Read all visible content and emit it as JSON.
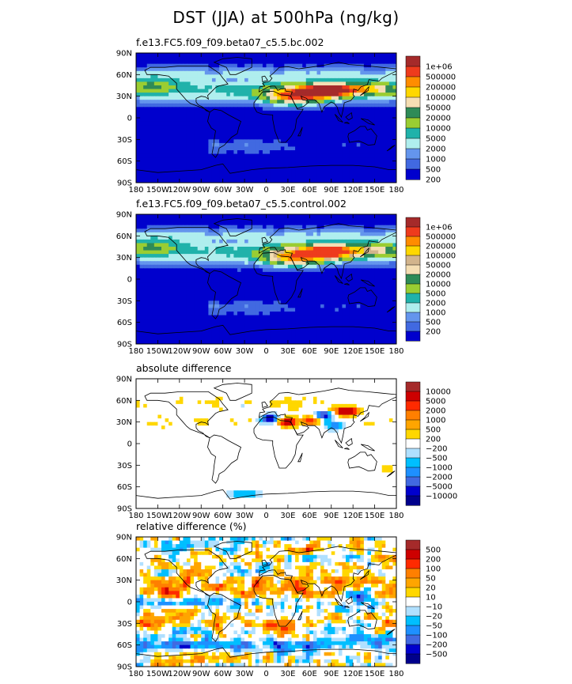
{
  "title": "DST (JJA) at 500hPa (ng/kg)",
  "panels": [
    {
      "title": "f.e13.FC5.f09_f09.beta07_c5.5.bc.002"
    },
    {
      "title": "f.e13.FC5.f09_f09.beta07_c5.5.control.002"
    },
    {
      "title": "absolute difference"
    },
    {
      "title": "relative difference (%)"
    }
  ],
  "chart_data": [
    {
      "type": "heatmap",
      "title": "f.e13.FC5.f09_f09.beta07_c5.5.bc.002",
      "x_ticks": [
        "180",
        "150W",
        "120W",
        "90W",
        "60W",
        "30W",
        "0",
        "30E",
        "60E",
        "90E",
        "120E",
        "150E",
        "180"
      ],
      "y_ticks": [
        "90N",
        "60N",
        "30N",
        "0",
        "30S",
        "60S",
        "90S"
      ],
      "colorbar": {
        "labels": [
          "1e+06",
          "500000",
          "200000",
          "100000",
          "50000",
          "20000",
          "10000",
          "5000",
          "2000",
          "1000",
          "500",
          "200"
        ],
        "colors": [
          "#a52a2a",
          "#ee3b1d",
          "#ff8c00",
          "#ffd700",
          "#f5deb3",
          "#2e8b57",
          "#9acd32",
          "#20b2aa",
          "#afeeee",
          "#6495ed",
          "#4169e1",
          "#0000cd"
        ]
      }
    },
    {
      "type": "heatmap",
      "title": "f.e13.FC5.f09_f09.beta07_c5.5.control.002",
      "x_ticks": [
        "180",
        "150W",
        "120W",
        "90W",
        "60W",
        "30W",
        "0",
        "30E",
        "60E",
        "90E",
        "120E",
        "150E",
        "180"
      ],
      "y_ticks": [
        "90N",
        "60N",
        "30N",
        "0",
        "30S",
        "60S",
        "90S"
      ],
      "colorbar": {
        "labels": [
          "1e+06",
          "500000",
          "200000",
          "100000",
          "50000",
          "20000",
          "10000",
          "5000",
          "2000",
          "1000",
          "500",
          "200"
        ],
        "colors": [
          "#a52a2a",
          "#ee3b1d",
          "#ff8c00",
          "#ffd700",
          "#d2b48c",
          "#f5deb3",
          "#2e8b57",
          "#9acd32",
          "#20b2aa",
          "#afeeee",
          "#6495ed",
          "#4169e1",
          "#0000cd"
        ]
      }
    },
    {
      "type": "heatmap",
      "title": "absolute difference",
      "x_ticks": [
        "180",
        "150W",
        "120W",
        "90W",
        "60W",
        "30W",
        "0",
        "30E",
        "60E",
        "90E",
        "120E",
        "150E",
        "180"
      ],
      "y_ticks": [
        "90N",
        "60N",
        "30N",
        "0",
        "30S",
        "60S",
        "90S"
      ],
      "colorbar": {
        "labels": [
          "10000",
          "5000",
          "2000",
          "1000",
          "500",
          "200",
          "−200",
          "−500",
          "−1000",
          "−2000",
          "−5000",
          "−10000"
        ],
        "colors": [
          "#a52a2a",
          "#cd0000",
          "#ff2a00",
          "#ff7f00",
          "#ffa500",
          "#ffd700",
          "#ffffff",
          "#b0e0ff",
          "#00bfff",
          "#1e90ff",
          "#4169e1",
          "#0000cd",
          "#00008b"
        ]
      }
    },
    {
      "type": "heatmap",
      "title": "relative difference (%)",
      "x_ticks": [
        "180",
        "150W",
        "120W",
        "90W",
        "60W",
        "30W",
        "0",
        "30E",
        "60E",
        "90E",
        "120E",
        "150E",
        "180"
      ],
      "y_ticks": [
        "90N",
        "60N",
        "30N",
        "0",
        "30S",
        "60S",
        "90S"
      ],
      "colorbar": {
        "labels": [
          "500",
          "200",
          "100",
          "50",
          "20",
          "10",
          "−10",
          "−20",
          "−50",
          "−100",
          "−200",
          "−500"
        ],
        "colors": [
          "#a52a2a",
          "#cd0000",
          "#ff2a00",
          "#ff7f00",
          "#ffa500",
          "#ffd700",
          "#ffffff",
          "#b0e0ff",
          "#00bfff",
          "#1e90ff",
          "#4169e1",
          "#0000cd",
          "#00008b"
        ]
      }
    }
  ]
}
